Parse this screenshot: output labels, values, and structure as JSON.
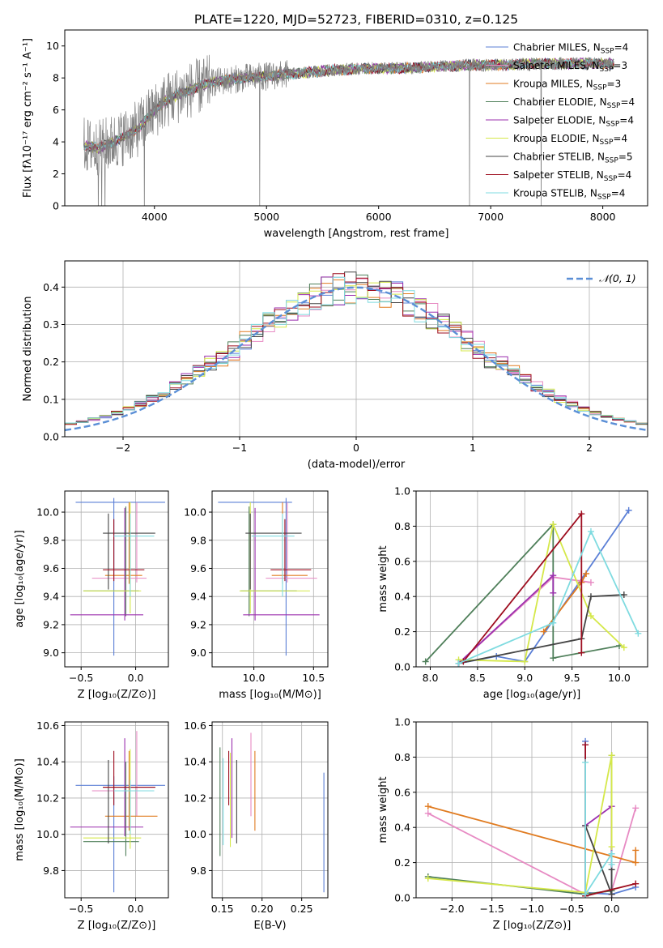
{
  "figure_title": "PLATE=1220, MJD=52723, FIBERID=0310, z=0.125",
  "colors": {
    "Chabrier MILES": "#5b7fd6",
    "Salpeter MILES": "#e78ac3",
    "Kroupa MILES": "#e07b20",
    "Chabrier ELODIE": "#4f7f5a",
    "Salpeter ELODIE": "#9b2fae",
    "Kroupa ELODIE": "#d5e84a",
    "Chabrier STELIB": "#444444",
    "Salpeter STELIB": "#9e0d1f",
    "Kroupa STELIB": "#7fdbe0",
    "data": "#808080",
    "gaussian": "#5b8fd6"
  },
  "chart_data": [
    {
      "id": "spectrum",
      "type": "line",
      "xlabel": "wavelength [Angstrom, rest frame]",
      "ylabel": "Flux [fλ10⁻¹⁷ erg cm⁻² s⁻¹ A⁻¹]",
      "xlim": [
        3200,
        8400
      ],
      "ylim": [
        0,
        11
      ],
      "xticks": [
        4000,
        5000,
        6000,
        7000,
        8000
      ],
      "yticks": [
        0,
        2,
        4,
        6,
        8,
        10
      ],
      "legend": "top-right",
      "legend_entries": [
        {
          "label": "Chabrier MILES, N",
          "sub": "SSP",
          "tail": "=4"
        },
        {
          "label": "Salpeter MILES, N",
          "sub": "SSP",
          "tail": "=3"
        },
        {
          "label": "Kroupa MILES, N",
          "sub": "SSP",
          "tail": "=3"
        },
        {
          "label": "Chabrier ELODIE, N",
          "sub": "SSP",
          "tail": "=4"
        },
        {
          "label": "Salpeter ELODIE, N",
          "sub": "SSP",
          "tail": "=4"
        },
        {
          "label": "Kroupa ELODIE, N",
          "sub": "SSP",
          "tail": "=4"
        },
        {
          "label": "Chabrier STELIB, N",
          "sub": "SSP",
          "tail": "=5"
        },
        {
          "label": "Salpeter STELIB, N",
          "sub": "SSP",
          "tail": "=4"
        },
        {
          "label": "Kroupa STELIB, N",
          "sub": "SSP",
          "tail": "=4"
        }
      ],
      "continuum": {
        "x": [
          3370,
          3500,
          3700,
          3850,
          3950,
          4100,
          4300,
          4500,
          4800,
          5000,
          5300,
          5600,
          5900,
          6200,
          6500,
          6800,
          7100,
          7400,
          7800,
          8100
        ],
        "y": [
          3.8,
          3.6,
          4.2,
          4.8,
          5.6,
          6.6,
          7.2,
          7.7,
          8.0,
          8.1,
          8.3,
          8.5,
          8.6,
          8.6,
          8.7,
          8.8,
          8.8,
          8.9,
          8.9,
          8.9
        ]
      },
      "grid": false
    },
    {
      "id": "residuals",
      "type": "line",
      "xlabel": "(data-model)/error",
      "ylabel": "Normed distribution",
      "xlim": [
        -2.5,
        2.5
      ],
      "ylim": [
        0,
        0.47
      ],
      "xticks": [
        -2,
        -1,
        0,
        1,
        2
      ],
      "xtick_labels": [
        "−2",
        "−1",
        "0",
        "1",
        "2"
      ],
      "yticks": [
        0,
        0.1,
        0.2,
        0.3,
        0.4
      ],
      "ytick_labels": [
        "0.0",
        "0.1",
        "0.2",
        "0.3",
        "0.4"
      ],
      "legend": "top-right",
      "legend_label": "𝒩(0, 1)",
      "bin_width": 0.1,
      "grid": true
    },
    {
      "id": "age_vs_Z",
      "type": "scatter",
      "xlabel": "Z [log₁₀(Z/Z⊙)]",
      "ylabel": "age  [log₁₀(age/yr)]",
      "xlim": [
        -0.65,
        0.3
      ],
      "ylim": [
        8.9,
        10.15
      ],
      "xticks": [
        -0.5,
        0.0
      ],
      "xtick_labels": [
        "−0.5",
        "0.0"
      ],
      "yticks": [
        9.0,
        9.2,
        9.4,
        9.6,
        9.8,
        10.0
      ],
      "ytick_labels": [
        "9.0",
        "9.2",
        "9.4",
        "9.6",
        "9.8",
        "10.0"
      ],
      "grid": true,
      "points": [
        {
          "c": "Chabrier MILES",
          "x": -0.2,
          "xlo": -0.55,
          "xhi": 0.27,
          "y": 10.07,
          "ylo": 8.98,
          "yhi": 10.1
        },
        {
          "c": "Salpeter MILES",
          "x": 0.01,
          "xlo": -0.4,
          "xhi": 0.1,
          "y": 9.53,
          "ylo": 9.5,
          "yhi": 10.07
        },
        {
          "c": "Kroupa MILES",
          "x": -0.06,
          "xlo": -0.28,
          "xhi": 0.06,
          "y": 9.55,
          "ylo": 9.49,
          "yhi": 10.07
        },
        {
          "c": "Chabrier ELODIE",
          "x": -0.09,
          "xlo": -0.48,
          "xhi": 0.03,
          "y": 9.44,
          "ylo": 9.26,
          "yhi": 10.04
        },
        {
          "c": "Salpeter ELODIE",
          "x": -0.1,
          "xlo": -0.6,
          "xhi": 0.07,
          "y": 9.27,
          "ylo": 9.23,
          "yhi": 10.03
        },
        {
          "c": "Kroupa ELODIE",
          "x": -0.05,
          "xlo": -0.48,
          "xhi": 0.05,
          "y": 9.44,
          "ylo": 9.28,
          "yhi": 10.07
        },
        {
          "c": "Chabrier STELIB",
          "x": -0.25,
          "xlo": -0.3,
          "xhi": 0.18,
          "y": 9.85,
          "ylo": 9.45,
          "yhi": 9.99
        },
        {
          "c": "Salpeter STELIB",
          "x": -0.2,
          "xlo": -0.3,
          "xhi": 0.08,
          "y": 9.59,
          "ylo": 9.51,
          "yhi": 9.95
        },
        {
          "c": "Kroupa STELIB",
          "x": -0.05,
          "xlo": -0.2,
          "xhi": 0.17,
          "y": 9.83,
          "ylo": 9.4,
          "yhi": 9.99
        }
      ]
    },
    {
      "id": "age_vs_mass",
      "type": "scatter",
      "xlabel": "mass [log₁₀(M/M⊙)]",
      "ylabel": "",
      "xlim": [
        9.65,
        10.62
      ],
      "ylim": [
        8.9,
        10.15
      ],
      "xticks": [
        10.0,
        10.5
      ],
      "xtick_labels": [
        "10.0",
        "10.5"
      ],
      "yticks": [
        9.0,
        9.2,
        9.4,
        9.6,
        9.8,
        10.0
      ],
      "ytick_labels": [
        "9.0",
        "9.2",
        "9.4",
        "9.6",
        "9.8",
        "10.0"
      ],
      "grid": true,
      "points": [
        {
          "c": "Chabrier MILES",
          "x": 10.27,
          "xlo": 9.7,
          "xhi": 10.32,
          "y": 10.07,
          "ylo": 8.98,
          "yhi": 10.1
        },
        {
          "c": "Salpeter MILES",
          "x": 10.28,
          "xlo": 10.1,
          "xhi": 10.53,
          "y": 9.53,
          "ylo": 9.5,
          "yhi": 10.07
        },
        {
          "c": "Kroupa MILES",
          "x": 10.24,
          "xlo": 10.15,
          "xhi": 10.45,
          "y": 9.55,
          "ylo": 9.49,
          "yhi": 10.07
        },
        {
          "c": "Chabrier ELODIE",
          "x": 9.96,
          "xlo": 9.89,
          "xhi": 10.36,
          "y": 9.44,
          "ylo": 9.26,
          "yhi": 10.04
        },
        {
          "c": "Salpeter ELODIE",
          "x": 10.01,
          "xlo": 9.91,
          "xhi": 10.55,
          "y": 9.27,
          "ylo": 9.23,
          "yhi": 10.03
        },
        {
          "c": "Kroupa ELODIE",
          "x": 9.97,
          "xlo": 9.88,
          "xhi": 10.47,
          "y": 9.44,
          "ylo": 9.28,
          "yhi": 10.07
        },
        {
          "c": "Chabrier STELIB",
          "x": 9.97,
          "xlo": 9.93,
          "xhi": 10.4,
          "y": 9.85,
          "ylo": 9.45,
          "yhi": 9.99
        },
        {
          "c": "Salpeter STELIB",
          "x": 10.26,
          "xlo": 10.14,
          "xhi": 10.48,
          "y": 9.59,
          "ylo": 9.51,
          "yhi": 9.95
        },
        {
          "c": "Kroupa STELIB",
          "x": 10.24,
          "xlo": 9.98,
          "xhi": 10.34,
          "y": 9.83,
          "ylo": 9.4,
          "yhi": 9.99
        }
      ]
    },
    {
      "id": "weight_vs_age",
      "type": "line",
      "xlabel": "age  [log₁₀(age/yr)]",
      "ylabel": "mass weight",
      "xlim": [
        7.85,
        10.3
      ],
      "ylim": [
        0,
        1.0
      ],
      "xticks": [
        8.0,
        8.5,
        9.0,
        9.5,
        10.0
      ],
      "xtick_labels": [
        "8.0",
        "8.5",
        "9.0",
        "9.5",
        "10.0"
      ],
      "yticks": [
        0,
        0.2,
        0.4,
        0.6,
        0.8,
        1.0
      ],
      "ytick_labels": [
        "0.0",
        "0.2",
        "0.4",
        "0.6",
        "0.8",
        "1.0"
      ],
      "grid": true,
      "series": [
        {
          "c": "Chabrier MILES",
          "x": [
            8.3,
            8.7,
            9.0,
            10.1
          ],
          "y": [
            0.02,
            0.06,
            0.03,
            0.89
          ]
        },
        {
          "c": "Salpeter MILES",
          "x": [
            8.3,
            9.3,
            9.7
          ],
          "y": [
            0.02,
            0.51,
            0.48
          ]
        },
        {
          "c": "Kroupa MILES",
          "x": [
            9.2,
            9.6,
            9.65
          ],
          "y": [
            0.2,
            0.48,
            0.53
          ]
        },
        {
          "c": "Chabrier ELODIE",
          "x": [
            7.95,
            9.3,
            9.3,
            10.0
          ],
          "y": [
            0.03,
            0.81,
            0.05,
            0.12
          ]
        },
        {
          "c": "Salpeter ELODIE",
          "x": [
            8.3,
            9.3,
            9.3
          ],
          "y": [
            0.02,
            0.52,
            0.42
          ]
        },
        {
          "c": "Kroupa ELODIE",
          "x": [
            8.3,
            9.0,
            9.3,
            9.7,
            10.05
          ],
          "y": [
            0.04,
            0.03,
            0.81,
            0.29,
            0.11
          ]
        },
        {
          "c": "Chabrier STELIB",
          "x": [
            8.3,
            9.6,
            9.7,
            10.05
          ],
          "y": [
            0.02,
            0.16,
            0.4,
            0.41
          ]
        },
        {
          "c": "Salpeter STELIB",
          "x": [
            8.35,
            9.6,
            9.6
          ],
          "y": [
            0.03,
            0.87,
            0.08
          ]
        },
        {
          "c": "Kroupa STELIB",
          "x": [
            8.3,
            9.3,
            9.7,
            10.2
          ],
          "y": [
            0.02,
            0.25,
            0.77,
            0.19
          ]
        }
      ]
    },
    {
      "id": "mass_vs_Z",
      "type": "scatter",
      "xlabel": "Z [log₁₀(Z/Z⊙)]",
      "ylabel": "mass [log₁₀(M/M⊙)]",
      "xlim": [
        -0.65,
        0.3
      ],
      "ylim": [
        9.65,
        10.62
      ],
      "xticks": [
        -0.5,
        0.0
      ],
      "xtick_labels": [
        "−0.5",
        "0.0"
      ],
      "yticks": [
        9.8,
        10.0,
        10.2,
        10.4,
        10.6
      ],
      "ytick_labels": [
        "9.8",
        "10.0",
        "10.2",
        "10.4",
        "10.6"
      ],
      "grid": true,
      "points": [
        {
          "c": "Chabrier MILES",
          "x": -0.2,
          "xlo": -0.55,
          "xhi": 0.27,
          "y": 10.27,
          "ylo": 9.68,
          "yhi": 10.32
        },
        {
          "c": "Salpeter MILES",
          "x": 0.01,
          "xlo": -0.4,
          "xhi": 0.1,
          "y": 10.24,
          "ylo": 10.1,
          "yhi": 10.57
        },
        {
          "c": "Kroupa MILES",
          "x": -0.06,
          "xlo": -0.28,
          "xhi": 0.2,
          "y": 10.1,
          "ylo": 10.02,
          "yhi": 10.46
        },
        {
          "c": "Chabrier ELODIE",
          "x": -0.09,
          "xlo": -0.48,
          "xhi": 0.03,
          "y": 9.96,
          "ylo": 9.88,
          "yhi": 10.4
        },
        {
          "c": "Salpeter ELODIE",
          "x": -0.1,
          "xlo": -0.6,
          "xhi": 0.07,
          "y": 10.04,
          "ylo": 9.99,
          "yhi": 10.53
        },
        {
          "c": "Kroupa ELODIE",
          "x": -0.05,
          "xlo": -0.48,
          "xhi": 0.05,
          "y": 9.98,
          "ylo": 9.92,
          "yhi": 10.47
        },
        {
          "c": "Chabrier STELIB",
          "x": -0.25,
          "xlo": -0.3,
          "xhi": 0.18,
          "y": 10.26,
          "ylo": 9.95,
          "yhi": 10.41
        },
        {
          "c": "Salpeter STELIB",
          "x": -0.2,
          "xlo": -0.3,
          "xhi": 0.18,
          "y": 10.26,
          "ylo": 10.16,
          "yhi": 10.46
        },
        {
          "c": "Kroupa STELIB",
          "x": -0.05,
          "xlo": -0.2,
          "xhi": 0.17,
          "y": 10.24,
          "ylo": 10.0,
          "yhi": 10.3
        }
      ]
    },
    {
      "id": "mass_vs_ebv",
      "type": "scatter",
      "xlabel": "E(B-V)",
      "ylabel": "",
      "xlim": [
        0.137,
        0.283
      ],
      "ylim": [
        9.65,
        10.62
      ],
      "xticks": [
        0.15,
        0.2,
        0.25
      ],
      "xtick_labels": [
        "0.15",
        "0.20",
        "0.25"
      ],
      "yticks": [
        9.8,
        10.0,
        10.2,
        10.4,
        10.6
      ],
      "ytick_labels": [
        "9.8",
        "10.0",
        "10.2",
        "10.4",
        "10.6"
      ],
      "grid": true,
      "points": [
        {
          "c": "Chabrier MILES",
          "x": 0.278,
          "ylo": 9.68,
          "yhi": 10.34
        },
        {
          "c": "Salpeter MILES",
          "x": 0.186,
          "ylo": 10.1,
          "yhi": 10.56
        },
        {
          "c": "Kroupa MILES",
          "x": 0.191,
          "ylo": 10.02,
          "yhi": 10.46
        },
        {
          "c": "Chabrier ELODIE",
          "x": 0.147,
          "ylo": 9.88,
          "yhi": 10.48
        },
        {
          "c": "Salpeter ELODIE",
          "x": 0.162,
          "ylo": 9.98,
          "yhi": 10.53
        },
        {
          "c": "Kroupa ELODIE",
          "x": 0.16,
          "ylo": 9.93,
          "yhi": 10.45
        },
        {
          "c": "Chabrier STELIB",
          "x": 0.168,
          "ylo": 9.95,
          "yhi": 10.41
        },
        {
          "c": "Salpeter STELIB",
          "x": 0.158,
          "ylo": 10.16,
          "yhi": 10.46
        },
        {
          "c": "Kroupa STELIB",
          "x": 0.151,
          "ylo": 9.94,
          "yhi": 10.42
        }
      ]
    },
    {
      "id": "weight_vs_Z",
      "type": "line",
      "xlabel": "Z [log₁₀(Z/Z⊙)]",
      "ylabel": "mass weight",
      "xlim": [
        -2.45,
        0.45
      ],
      "ylim": [
        0,
        1.0
      ],
      "xticks": [
        -2.0,
        -1.5,
        -1.0,
        -0.5,
        0.0
      ],
      "xtick_labels": [
        "−2.0",
        "−1.5",
        "−1.0",
        "−0.5",
        "0.0"
      ],
      "yticks": [
        0,
        0.2,
        0.4,
        0.6,
        0.8,
        1.0
      ],
      "ytick_labels": [
        "0.0",
        "0.2",
        "0.4",
        "0.6",
        "0.8",
        "1.0"
      ],
      "grid": true,
      "series": [
        {
          "c": "Chabrier MILES",
          "x": [
            -0.33,
            -0.33,
            0.0,
            0.3
          ],
          "y": [
            0.89,
            0.03,
            0.02,
            0.06
          ]
        },
        {
          "c": "Salpeter MILES",
          "x": [
            -2.3,
            -0.33,
            0.0,
            0.3
          ],
          "y": [
            0.48,
            0.02,
            0.04,
            0.51
          ]
        },
        {
          "c": "Kroupa MILES",
          "x": [
            -2.3,
            0.3,
            0.3
          ],
          "y": [
            0.52,
            0.2,
            0.27
          ]
        },
        {
          "c": "Chabrier ELODIE",
          "x": [
            -2.3,
            -0.33,
            0.0,
            0.0
          ],
          "y": [
            0.12,
            0.02,
            0.04,
            0.81
          ]
        },
        {
          "c": "Salpeter ELODIE",
          "x": [
            -0.33,
            0.0,
            0.0
          ],
          "y": [
            0.41,
            0.52,
            0.02
          ]
        },
        {
          "c": "Kroupa ELODIE",
          "x": [
            -2.3,
            -0.33,
            0.0,
            0.0
          ],
          "y": [
            0.11,
            0.03,
            0.81,
            0.29
          ]
        },
        {
          "c": "Chabrier STELIB",
          "x": [
            -0.33,
            0.0,
            0.0
          ],
          "y": [
            0.41,
            0.02,
            0.16
          ]
        },
        {
          "c": "Salpeter STELIB",
          "x": [
            -0.33,
            -0.33,
            0.3
          ],
          "y": [
            0.87,
            0.01,
            0.08
          ]
        },
        {
          "c": "Kroupa STELIB",
          "x": [
            -0.33,
            -0.33,
            0.0,
            0.0
          ],
          "y": [
            0.77,
            0.02,
            0.25,
            0.19
          ]
        }
      ]
    }
  ]
}
